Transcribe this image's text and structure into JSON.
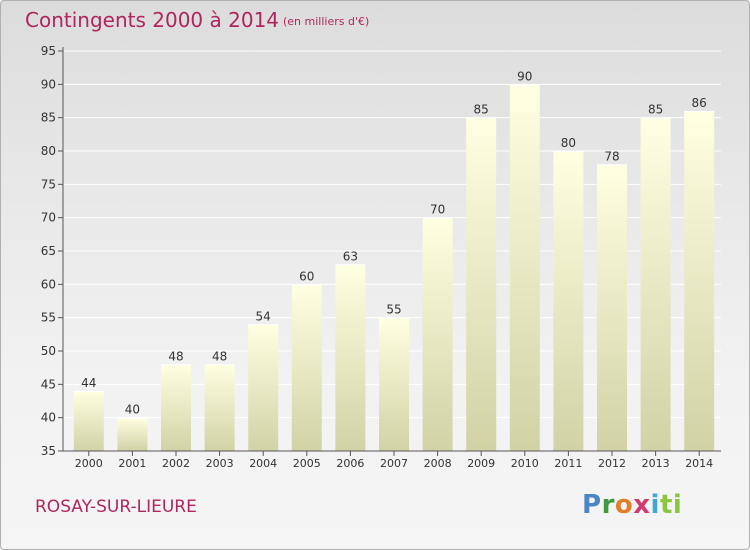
{
  "header": {
    "title": "Contingents 2000 à 2014",
    "subtitle": "(en milliers d'€)"
  },
  "footer": {
    "place": "ROSAY-SUR-LIEURE",
    "brand": "Proxiti"
  },
  "colors": {
    "title": "#b0255f",
    "bar_top": "#ffffe0",
    "bar_bottom": "#d3d3a8",
    "axis": "#555555",
    "grid": "#ffffff"
  },
  "chart_data": {
    "type": "bar",
    "title": "Contingents 2000 à 2014",
    "subtitle": "(en milliers d'€)",
    "categories": [
      "2000",
      "2001",
      "2002",
      "2003",
      "2004",
      "2005",
      "2006",
      "2007",
      "2008",
      "2009",
      "2010",
      "2011",
      "2012",
      "2013",
      "2014"
    ],
    "values": [
      44,
      40,
      48,
      48,
      54,
      60,
      63,
      55,
      70,
      85,
      90,
      80,
      78,
      85,
      86
    ],
    "ylim": [
      35,
      95
    ],
    "yticks": [
      35,
      40,
      45,
      50,
      55,
      60,
      65,
      70,
      75,
      80,
      85,
      90,
      95
    ],
    "grid": true,
    "legend": "none",
    "xlabel": "",
    "ylabel": ""
  }
}
